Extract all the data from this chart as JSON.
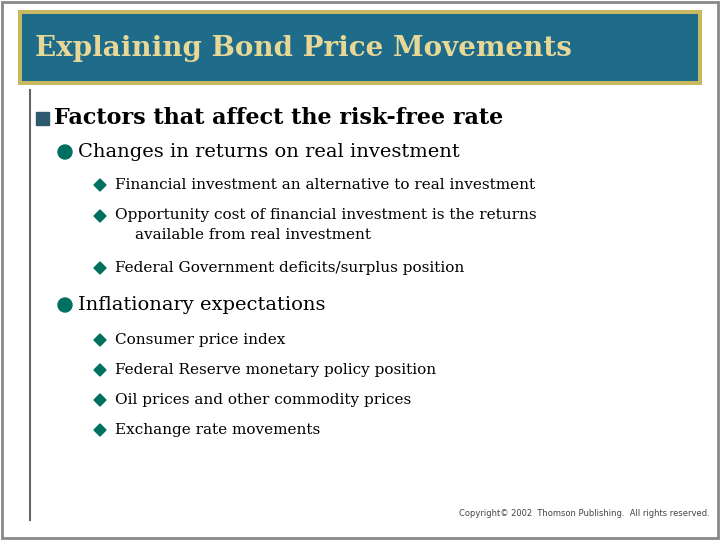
{
  "title": "Explaining Bond Price Movements",
  "title_bg_color": "#1e6b8a",
  "title_border_color": "#000000",
  "title_border_outer": "#c8b860",
  "title_text_color": "#e8d898",
  "bg_color": "#ffffff",
  "teal_color": "#007060",
  "dark_teal": "#007060",
  "bullet_square_color": "#2d5a6e",
  "copyright": "Copyright© 2002  Thomson Publishing.  All rights reserved.",
  "level1_text": "Factors that affect the risk-free rate",
  "level2_items": [
    {
      "text": "Changes in returns on real investment",
      "level3": [
        "Financial investment an alternative to real investment",
        "Opportunity cost of financial investment is the returns\navailable from real investment",
        "Federal Government deficits/surplus position"
      ]
    },
    {
      "text": "Inflationary expectations",
      "level3": [
        "Consumer price index",
        "Federal Reserve monetary policy position",
        "Oil prices and other commodity prices",
        "Exchange rate movements"
      ]
    }
  ],
  "title_font_size": 20,
  "l1_font_size": 16,
  "l2_font_size": 14,
  "l3_font_size": 11
}
